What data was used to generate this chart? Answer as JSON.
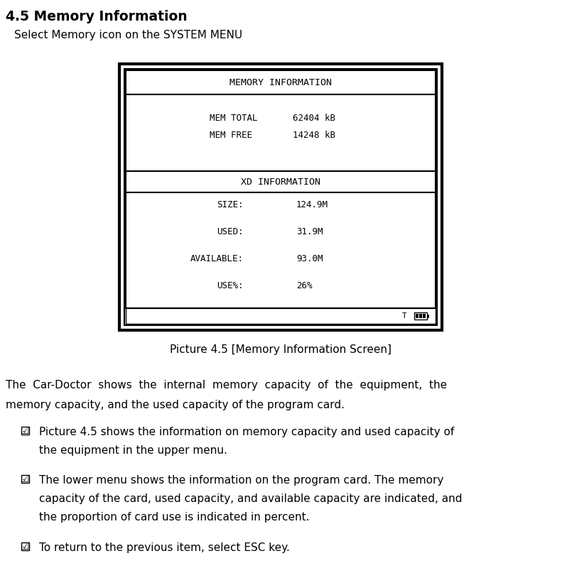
{
  "title": "4.5 Memory Information",
  "subtitle": "Select Memory icon on the SYSTEM MENU",
  "picture_caption": "Picture 4.5 [Memory Information Screen]",
  "screen_title": "MEMORY INFORMATION",
  "mem_total_label": "MEM TOTAL",
  "mem_total_value": "62404 kB",
  "mem_free_label": "MEM FREE",
  "mem_free_value": "14248 kB",
  "xd_title": "XD INFORMATION",
  "size_label": "SIZE:",
  "size_value": "124.9M",
  "used_label": "USED:",
  "used_value": "31.9M",
  "available_label": "AVAILABLE:",
  "available_value": "93.0M",
  "usepct_label": "USE%:",
  "usepct_value": "26%",
  "body_line1": "The  Car-Doctor  shows  the  internal  memory  capacity  of  the  equipment,  the",
  "body_line2": "memory capacity, and the used capacity of the program card.",
  "bullet1_line1": "Picture 4.5 shows the information on memory capacity and used capacity of",
  "bullet1_line2": "the equipment in the upper menu.",
  "bullet2_line1": "The lower menu shows the information on the program card. The memory",
  "bullet2_line2": "capacity of the card, used capacity, and available capacity are indicated, and",
  "bullet2_line3": "the proportion of card use is indicated in percent.",
  "bullet3_line1": "To return to the previous item, select ESC key.",
  "bg_color": "#ffffff",
  "text_color": "#000000"
}
